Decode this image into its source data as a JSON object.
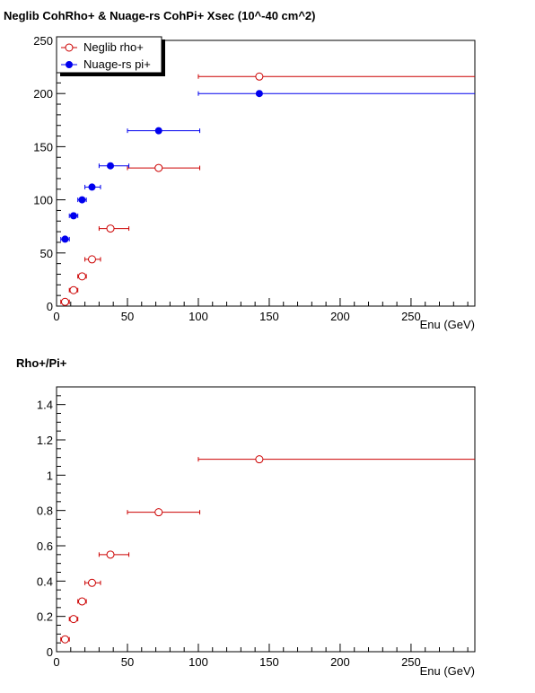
{
  "chart_data": [
    {
      "type": "scatter",
      "title": "Neglib CohRho+ & Nuage-rs CohPi+ Xsec (10^-40 cm^2)",
      "xlabel": "Enu (GeV)",
      "ylabel": "",
      "xlim": [
        0,
        295
      ],
      "ylim": [
        0,
        250
      ],
      "xticks": [
        0,
        50,
        100,
        150,
        200,
        250
      ],
      "yticks": [
        0,
        50,
        100,
        150,
        200,
        250
      ],
      "grid": false,
      "legend_position": "top-left",
      "series": [
        {
          "name": "Neglib rho+",
          "color": "#cc0000",
          "marker": "open-circle",
          "points": [
            {
              "x": 6,
              "y": 4,
              "xerr": [
                3,
                9
              ]
            },
            {
              "x": 12,
              "y": 15,
              "xerr": [
                9,
                15
              ]
            },
            {
              "x": 18,
              "y": 28,
              "xerr": [
                15,
                21
              ]
            },
            {
              "x": 25,
              "y": 44,
              "xerr": [
                20,
                31
              ]
            },
            {
              "x": 38,
              "y": 73,
              "xerr": [
                30,
                51
              ]
            },
            {
              "x": 72,
              "y": 130,
              "xerr": [
                50,
                101
              ]
            },
            {
              "x": 143,
              "y": 216,
              "xerr": [
                100,
                295
              ]
            }
          ]
        },
        {
          "name": "Nuage-rs pi+",
          "color": "#0000ee",
          "marker": "filled-circle",
          "points": [
            {
              "x": 6,
              "y": 63,
              "xerr": [
                3,
                9
              ]
            },
            {
              "x": 12,
              "y": 85,
              "xerr": [
                9,
                15
              ]
            },
            {
              "x": 18,
              "y": 100,
              "xerr": [
                15,
                21
              ]
            },
            {
              "x": 25,
              "y": 112,
              "xerr": [
                20,
                31
              ]
            },
            {
              "x": 38,
              "y": 132,
              "xerr": [
                30,
                51
              ]
            },
            {
              "x": 72,
              "y": 165,
              "xerr": [
                50,
                101
              ]
            },
            {
              "x": 143,
              "y": 200,
              "xerr": [
                100,
                295
              ]
            }
          ]
        }
      ]
    },
    {
      "type": "scatter",
      "title": "Rho+/Pi+",
      "xlabel": "Enu (GeV)",
      "ylabel": "",
      "xlim": [
        0,
        295
      ],
      "ylim": [
        0,
        1.5
      ],
      "xticks": [
        0,
        50,
        100,
        150,
        200,
        250
      ],
      "yticks": [
        0,
        0.2,
        0.4,
        0.6,
        0.8,
        1,
        1.2,
        1.4
      ],
      "grid": false,
      "series": [
        {
          "name": "",
          "color": "#cc0000",
          "marker": "open-circle",
          "points": [
            {
              "x": 6,
              "y": 0.07,
              "xerr": [
                3,
                9
              ]
            },
            {
              "x": 12,
              "y": 0.185,
              "xerr": [
                9,
                15
              ]
            },
            {
              "x": 18,
              "y": 0.285,
              "xerr": [
                15,
                21
              ]
            },
            {
              "x": 25,
              "y": 0.39,
              "xerr": [
                20,
                31
              ]
            },
            {
              "x": 38,
              "y": 0.55,
              "xerr": [
                30,
                51
              ]
            },
            {
              "x": 72,
              "y": 0.79,
              "xerr": [
                50,
                101
              ]
            },
            {
              "x": 143,
              "y": 1.09,
              "xerr": [
                100,
                295
              ]
            }
          ]
        }
      ]
    }
  ]
}
